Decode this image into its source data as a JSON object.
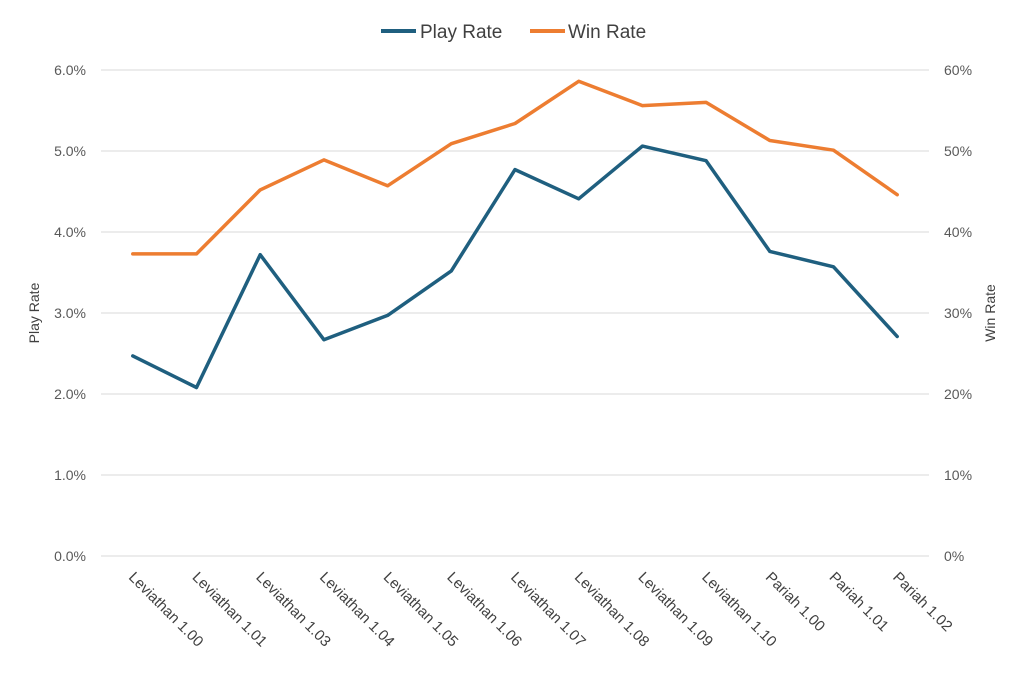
{
  "chart_data": {
    "type": "line",
    "title": "",
    "categories": [
      "Leviathan 1.00",
      "Leviathan 1.01",
      "Leviathan 1.03",
      "Leviathan 1.04",
      "Leviathan 1.05",
      "Leviathan 1.06",
      "Leviathan 1.07",
      "Leviathan 1.08",
      "Leviathan 1.09",
      "Leviathan 1.10",
      "Pariah 1.00",
      "Pariah 1.01",
      "Pariah 1.02"
    ],
    "series": [
      {
        "name": "Play Rate",
        "axis": "left",
        "color": "#1f5f7f",
        "values": [
          0.0247,
          0.0208,
          0.0372,
          0.0267,
          0.0297,
          0.0352,
          0.0477,
          0.0441,
          0.0506,
          0.0488,
          0.0376,
          0.0357,
          0.0271
        ]
      },
      {
        "name": "Win Rate",
        "axis": "right",
        "color": "#ed7d31",
        "values": [
          0.373,
          0.373,
          0.452,
          0.489,
          0.457,
          0.509,
          0.534,
          0.586,
          0.556,
          0.56,
          0.513,
          0.501,
          0.446
        ]
      }
    ],
    "y_left": {
      "label": "Play Rate",
      "ticks": [
        "0.0%",
        "1.0%",
        "2.0%",
        "3.0%",
        "4.0%",
        "5.0%",
        "6.0%"
      ],
      "ylim": [
        0,
        0.06
      ]
    },
    "y_right": {
      "label": "Win Rate",
      "ticks": [
        "0%",
        "10%",
        "20%",
        "30%",
        "40%",
        "50%",
        "60%"
      ],
      "ylim": [
        0,
        0.6
      ]
    },
    "grid": true,
    "legend_position": "top-center"
  }
}
